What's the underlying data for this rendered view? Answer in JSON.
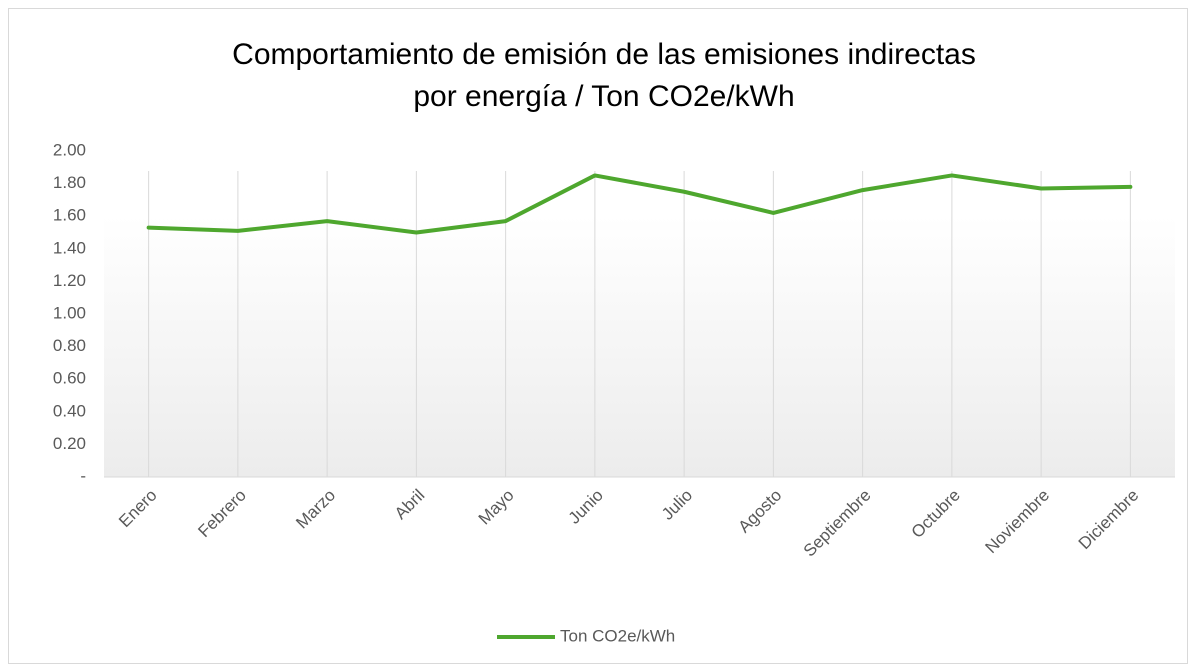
{
  "chart_data": {
    "type": "line",
    "title": [
      "Comportamiento de emisión de las emisiones indirectas",
      "por energía / Ton CO2e/kWh"
    ],
    "categories": [
      "Enero",
      "Febrero",
      "Marzo",
      "Abril",
      "Mayo",
      "Junio",
      "Julio",
      "Agosto",
      "Septiembre",
      "Octubre",
      "Noviembre",
      "Diciembre"
    ],
    "series": [
      {
        "name": "Ton CO2e/kWh",
        "color": "#4ea72e",
        "values": [
          1.53,
          1.51,
          1.57,
          1.5,
          1.57,
          1.85,
          1.75,
          1.62,
          1.76,
          1.85,
          1.77,
          1.78
        ]
      }
    ],
    "ylim": [
      0,
      2
    ],
    "yticks": [
      {
        "value": 0,
        "label": "-"
      },
      {
        "value": 0.2,
        "label": "0.20"
      },
      {
        "value": 0.4,
        "label": "0.40"
      },
      {
        "value": 0.6,
        "label": "0.60"
      },
      {
        "value": 0.8,
        "label": "0.80"
      },
      {
        "value": 1,
        "label": "1.00"
      },
      {
        "value": 1.2,
        "label": "1.20"
      },
      {
        "value": 1.4,
        "label": "1.40"
      },
      {
        "value": 1.6,
        "label": "1.60"
      },
      {
        "value": 1.8,
        "label": "1.80"
      },
      {
        "value": 2,
        "label": "2.00"
      }
    ],
    "grid": true,
    "legend": "bottom"
  }
}
